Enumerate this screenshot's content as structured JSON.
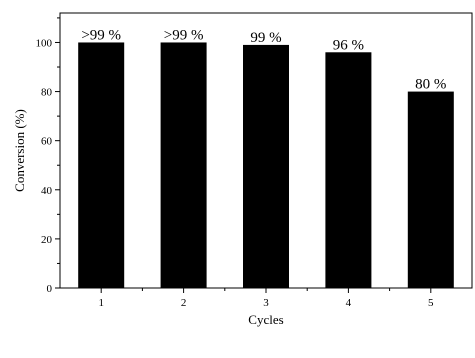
{
  "chart_data": {
    "type": "bar",
    "categories": [
      "1",
      "2",
      "3",
      "4",
      "5"
    ],
    "values": [
      100,
      100,
      99,
      96,
      80
    ],
    "data_labels": [
      ">99 %",
      ">99 %",
      "99 %",
      "96 %",
      "80 %"
    ],
    "xlabel": "Cycles",
    "ylabel": "Conversion (%)",
    "ylim": [
      0,
      112
    ],
    "yticks": [
      "0",
      "20",
      "40",
      "60",
      "80",
      "100"
    ],
    "bar_color": "#000000",
    "grid": false,
    "legend": "none"
  }
}
